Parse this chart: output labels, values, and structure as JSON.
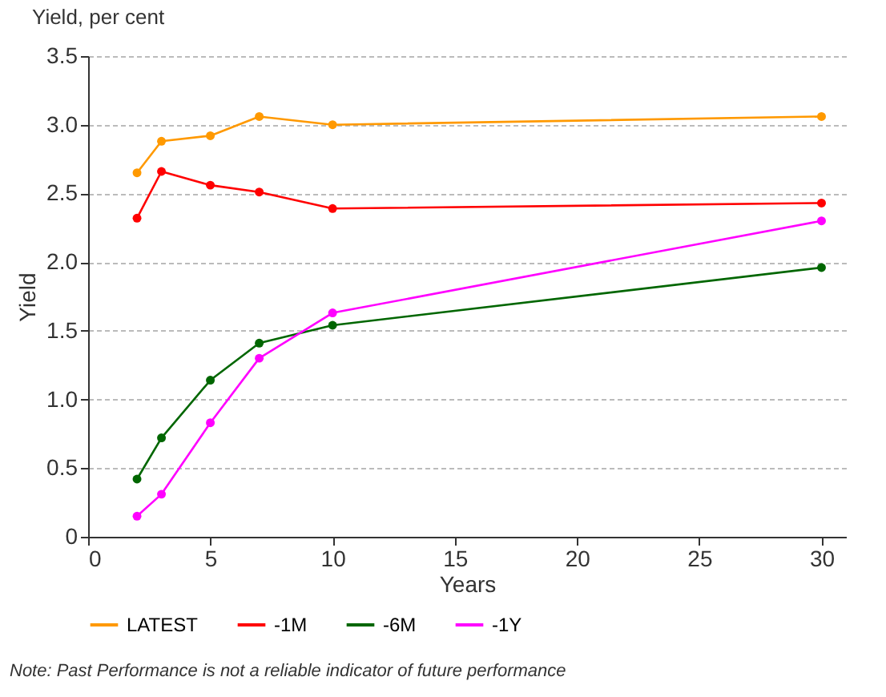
{
  "chart_data": {
    "type": "line",
    "title": "Yield, per cent",
    "xlabel": "Years",
    "ylabel": "Yield",
    "x": [
      2,
      3,
      5,
      7,
      10,
      30
    ],
    "series": [
      {
        "name": "LATEST",
        "color": "#ff9900",
        "values": [
          2.65,
          2.88,
          2.92,
          3.06,
          3.0,
          3.06
        ]
      },
      {
        "name": "-1M",
        "color": "#ff0000",
        "values": [
          2.32,
          2.66,
          2.56,
          2.51,
          2.39,
          2.43
        ]
      },
      {
        "name": "-6M",
        "color": "#006600",
        "values": [
          0.42,
          0.72,
          1.14,
          1.41,
          1.54,
          1.96
        ]
      },
      {
        "name": "-1Y",
        "color": "#ff00ff",
        "values": [
          0.15,
          0.31,
          0.83,
          1.3,
          1.63,
          2.3
        ]
      }
    ],
    "xlim": [
      0,
      31
    ],
    "xticks": [
      0,
      5,
      10,
      15,
      20,
      25,
      30
    ],
    "ylim": [
      0,
      3.5
    ],
    "yticks": [
      0,
      {
        "value": 0.5,
        "label": "0.5"
      },
      {
        "value": 1,
        "label": "1.0"
      },
      {
        "value": 1.5,
        "label": "1.5"
      },
      {
        "value": 2,
        "label": "2.0"
      },
      {
        "value": 2.5,
        "label": "2.5"
      },
      {
        "value": 3,
        "label": "3.0"
      },
      {
        "value": 3.5,
        "label": "3.5"
      }
    ],
    "grid": "y",
    "legend": "bottom",
    "marker": "circle",
    "line_style": "solid",
    "annotations": [
      "Note: Past Performance is not a reliable indicator of future performance"
    ]
  }
}
